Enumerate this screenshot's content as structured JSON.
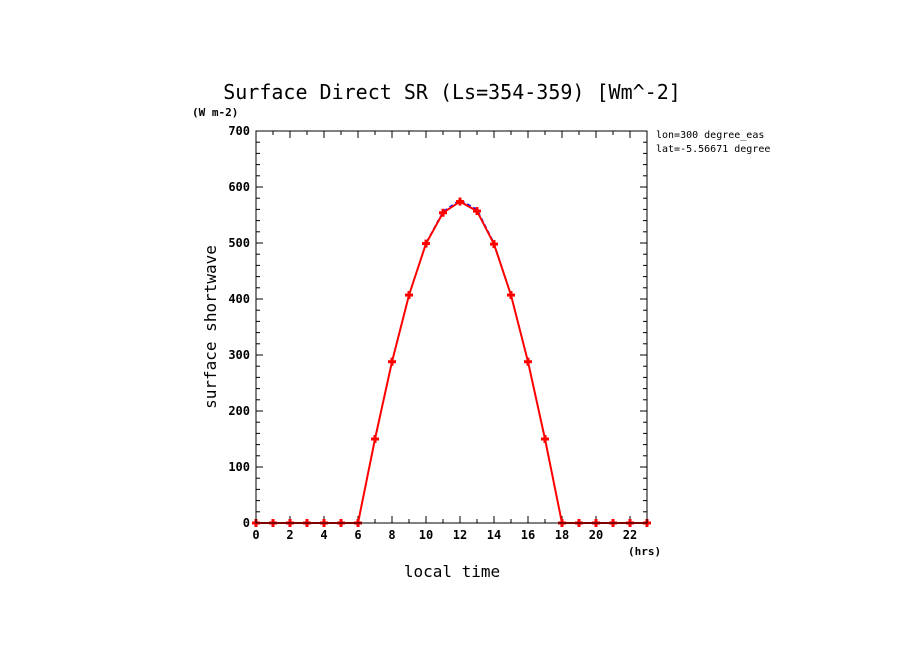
{
  "chart_data": {
    "type": "line",
    "title": "Surface Direct SR (Ls=354-359) [Wm^-2]",
    "xlabel": "local time",
    "ylabel": "surface shortwave",
    "x_units": "(hrs)",
    "y_units": "(W m-2)",
    "annotations": [
      "lon=300 degree_eas",
      "lat=-5.56671 degree"
    ],
    "xlim": [
      0,
      23
    ],
    "ylim": [
      0,
      700
    ],
    "x_ticks": [
      0,
      2,
      4,
      6,
      8,
      10,
      12,
      14,
      16,
      18,
      20,
      22
    ],
    "y_ticks": [
      0,
      100,
      200,
      300,
      400,
      500,
      600,
      700
    ],
    "x": [
      0,
      1,
      2,
      3,
      4,
      5,
      6,
      7,
      8,
      9,
      10,
      11,
      12,
      13,
      14,
      15,
      16,
      17,
      18,
      19,
      20,
      21,
      22,
      23
    ],
    "series": [
      {
        "color": "#0000ff",
        "style": "dashed",
        "values": [
          0,
          0,
          0,
          0,
          0,
          0,
          0,
          150,
          288,
          407,
          500,
          556,
          577,
          560,
          500,
          407,
          288,
          150,
          0,
          0,
          0,
          0,
          0,
          0
        ]
      },
      {
        "color": "#ff0000",
        "style": "solid-plus-markers",
        "values": [
          0,
          0,
          0,
          0,
          0,
          0,
          0,
          150,
          288,
          407,
          499,
          554,
          574,
          557,
          498,
          407,
          288,
          150,
          0,
          0,
          0,
          0,
          0,
          0
        ]
      }
    ]
  }
}
